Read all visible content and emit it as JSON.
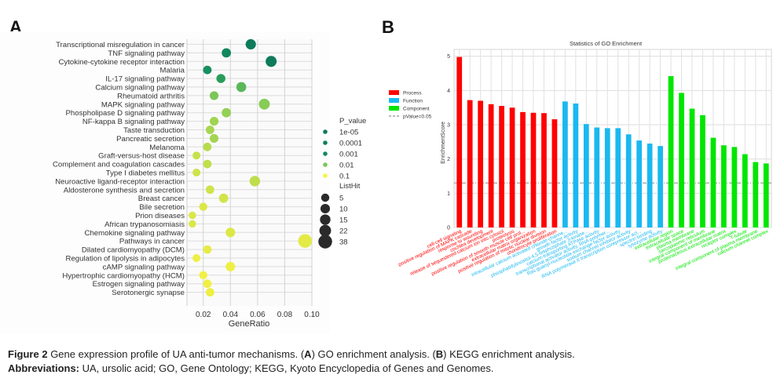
{
  "panels": {
    "a_letter": "A",
    "b_letter": "B"
  },
  "caption": {
    "fig_label": "Figure 2",
    "fig_text_1": " Gene expression profile of UA anti-tumor mechanisms. (",
    "a": "A",
    "fig_text_2": ") GO enrichment analysis. (",
    "b": "B",
    "fig_text_3": ") KEGG enrichment analysis.",
    "abbr_label": "Abbreviations:",
    "abbr_text": " UA, ursolic acid; GO, Gene Ontology; KEGG, Kyoto Encyclopedia of Genes and Genomes."
  },
  "chart_data": [
    {
      "type": "scatter",
      "title": "",
      "xlabel": "GeneRatio",
      "ylabel": "",
      "xlim": [
        0.008,
        0.1
      ],
      "xticks": [
        0.02,
        0.04,
        0.06,
        0.08,
        0.1
      ],
      "xtick_labels": [
        "0.02",
        "0.04",
        "0.06",
        "0.08",
        "0.10"
      ],
      "grid": true,
      "categories": [
        "Transcriptional misregulation in cancer",
        "TNF signaling pathway",
        "Cytokine-cytokine receptor interaction",
        "Malaria",
        "IL-17 signaling pathway",
        "Calcium signaling pathway",
        "Rheumatoid arthritis",
        "MAPK signaling pathway",
        "Phospholipase D signaling pathway",
        "NF-kappa B signaling pathway",
        "Taste transduction",
        "Pancreatic secretion",
        "Melanoma",
        "Graft-versus-host disease",
        "Complement and coagulation cascades",
        "Type I diabetes mellitus",
        "Neuroactive ligand-receptor interaction",
        "Aldosterone synthesis and secretion",
        "Breast cancer",
        "Bile secretion",
        "Prion diseases",
        "African trypanosomiasis",
        "Chemokine signaling pathway",
        "Pathways in cancer",
        "Dilated cardiomyopathy (DCM)",
        "Regulation of lipolysis in adipocytes",
        "cAMP signaling pathway",
        "Hypertrophic cardiomyopathy (HCM)",
        "Estrogen signaling pathway",
        "Serotonergic synapse"
      ],
      "gene_ratio": [
        0.055,
        0.037,
        0.07,
        0.023,
        0.033,
        0.048,
        0.028,
        0.065,
        0.037,
        0.028,
        0.025,
        0.028,
        0.023,
        0.015,
        0.023,
        0.015,
        0.058,
        0.025,
        0.035,
        0.02,
        0.012,
        0.012,
        0.04,
        0.095,
        0.023,
        0.015,
        0.04,
        0.02,
        0.023,
        0.025
      ],
      "list_hit": [
        14,
        9,
        18,
        6,
        8,
        12,
        7,
        17,
        9,
        7,
        6,
        7,
        6,
        4,
        6,
        4,
        15,
        6,
        9,
        5,
        3,
        3,
        10,
        38,
        6,
        4,
        10,
        5,
        6,
        6
      ],
      "colors": [
        "#0f7b5a",
        "#12875e",
        "#0f7b5a",
        "#17905f",
        "#2a9c5a",
        "#5bb85a",
        "#7cc657",
        "#86cc55",
        "#93d054",
        "#9fd453",
        "#a8d651",
        "#a4d552",
        "#b6dc4e",
        "#c6e14b",
        "#bfdf4c",
        "#cde34a",
        "#bede4c",
        "#cfe34a",
        "#d2e449",
        "#dbe747",
        "#d9e748",
        "#d9e748",
        "#dde847",
        "#e3ea46",
        "#e6eb46",
        "#eeef44",
        "#eeef44",
        "#f2f044",
        "#f0ef44",
        "#eeee44"
      ],
      "legend": {
        "position": "right",
        "p_title": "P_value",
        "p_items": [
          {
            "label": "1e-05",
            "color": "#0d7a5c"
          },
          {
            "label": "0.0001",
            "color": "#0e7f5c"
          },
          {
            "label": "0.001",
            "color": "#128a5e"
          },
          {
            "label": "0.01",
            "color": "#7cc657"
          },
          {
            "label": "0.1",
            "color": "#f5f443"
          }
        ],
        "size_title": "ListHit",
        "size_items": [
          "5",
          "10",
          "15",
          "22",
          "38"
        ],
        "size_values": [
          5,
          10,
          15,
          22,
          38
        ]
      }
    },
    {
      "type": "bar",
      "title": "Statistics of GO Enrichment",
      "xlabel": "",
      "ylabel": "EnrichmentScore",
      "ylim": [
        0,
        5.2
      ],
      "yticks": [
        0,
        1,
        2,
        3,
        4,
        5
      ],
      "ytick_labels": [
        "0",
        "1",
        "2",
        "3",
        "4",
        "5"
      ],
      "grid": true,
      "threshold": 1.3,
      "legend": {
        "position": "left",
        "items": [
          {
            "label": "Process",
            "color": "#ff0000"
          },
          {
            "label": "Function",
            "color": "#1ab8f0"
          },
          {
            "label": "Component",
            "color": "#00e600"
          },
          {
            "label": "pValue=0.05",
            "color": "#777777",
            "dashed": true
          }
        ]
      },
      "series": [
        {
          "name": "Process",
          "color": "#ff0000",
          "categories": [
            "cell-cell signaling",
            "positive regulation of MAPK cascade",
            "response to wounding",
            "cochlea development",
            "release of sequestered calcium ion into cytosol",
            "proteolysis",
            "positive regulation of smooth muscle cell prol...",
            "extracellular matrix organization",
            "positive regulation of mitotic nuclear division",
            "chondrocyte proliferation"
          ],
          "values": [
            4.98,
            3.72,
            3.7,
            3.6,
            3.55,
            3.5,
            3.37,
            3.35,
            3.34,
            3.16
          ]
        },
        {
          "name": "Function",
          "color": "#1ab8f0",
          "categories": [
            "intracellular calcium activated chloride channe...",
            "growth factor activity",
            "phosphatidylinositol-4,5-bisphosphate 3-kinase...",
            "calcium-transporting ATPase activity",
            "transcriptional activator activity, RNA polymer...",
            "Ras guanyl-nucleotide exchange factor activity",
            "sodium channel inhibitor activity",
            "RNA polymerase II transcription corepressor act...",
            "spectrin binding",
            "lysozyme activity"
          ],
          "values": [
            3.68,
            3.62,
            3.02,
            2.92,
            2.9,
            2.9,
            2.72,
            2.54,
            2.45,
            2.38
          ]
        },
        {
          "name": "Component",
          "color": "#00e600",
          "categories": [
            "extracellular region",
            "extracellular space",
            "plasma membrane",
            "sarcoplasmic reticulum",
            "integral component of membrane",
            "proteinaceous extracellular matrix",
            "receptor complex",
            "T-tubule",
            "integral component of plasma membrane",
            "calcium channel complex"
          ],
          "values": [
            4.42,
            3.93,
            3.47,
            3.28,
            2.62,
            2.4,
            2.35,
            2.14,
            1.91,
            1.87
          ]
        }
      ]
    }
  ]
}
